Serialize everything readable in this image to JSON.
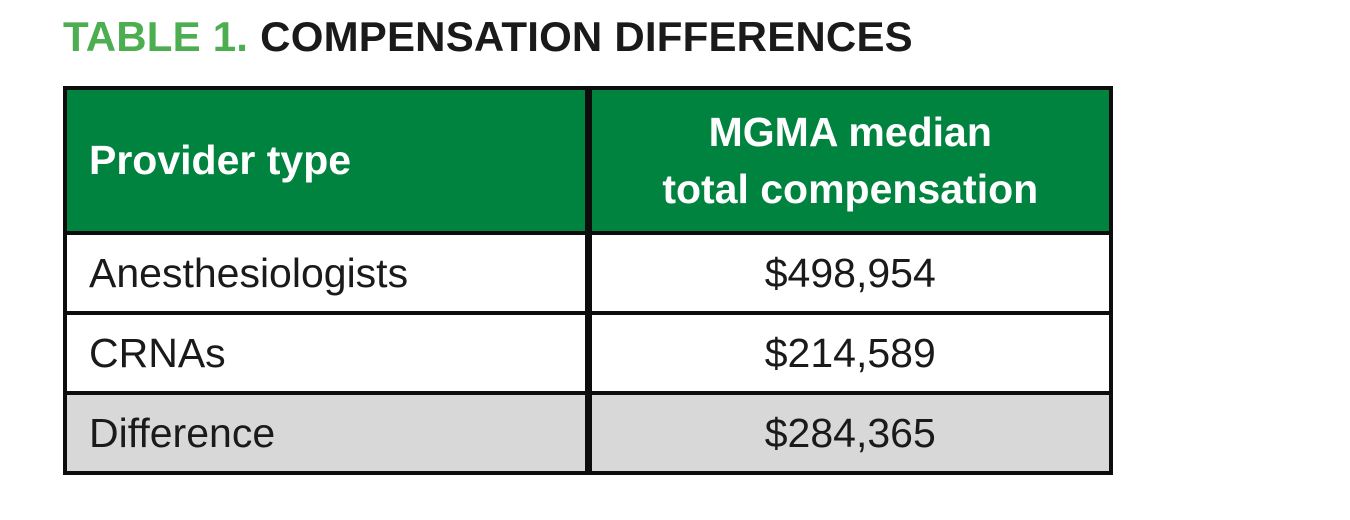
{
  "title": {
    "prefix": "TABLE 1.",
    "main": "COMPENSATION DIFFERENCES"
  },
  "colors": {
    "title_green": "#4cae50",
    "header_green": "#00833f",
    "diff_row_gray": "#d8d8d8",
    "border_black": "#0d0d0d"
  },
  "table": {
    "header": {
      "provider": "Provider type",
      "comp_line1": "MGMA median",
      "comp_line2": "total compensation"
    },
    "rows": [
      {
        "provider": "Anesthesiologists",
        "value": "$498,954"
      },
      {
        "provider": "CRNAs",
        "value": "$214,589"
      },
      {
        "provider": "Difference",
        "value": "$284,365"
      }
    ]
  },
  "chart_data": {
    "type": "table",
    "title": "TABLE 1. COMPENSATION DIFFERENCES",
    "columns": [
      "Provider type",
      "MGMA median total compensation"
    ],
    "rows": [
      [
        "Anesthesiologists",
        "$498,954"
      ],
      [
        "CRNAs",
        "$214,589"
      ],
      [
        "Difference",
        "$284,365"
      ]
    ],
    "values_numeric": {
      "Anesthesiologists": 498954,
      "CRNAs": 214589,
      "Difference": 284365
    }
  }
}
